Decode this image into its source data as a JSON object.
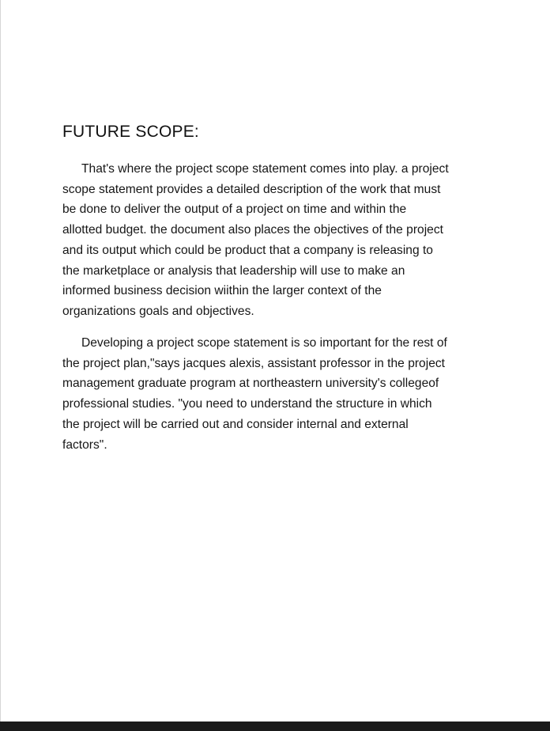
{
  "document": {
    "heading": "FUTURE SCOPE:",
    "paragraphs": [
      {
        "lines": [
          "That's where the project scope statement comes into play. a project",
          "scope statement provides a detailed description of the work that must",
          "be done to deliver the output of a project on time and within the",
          "allotted budget. the document also places the objectives of the project",
          "and its output which could be product that a company is releasing to",
          "the marketplace or analysis that leadership will use to make an",
          "informed business decision wiithin the larger context of the",
          "organizations goals and objectives."
        ]
      },
      {
        "lines": [
          "Developing a project scope statement is so important for the rest of",
          "the project plan,\"says jacques alexis, assistant professor in the project",
          "management graduate program at northeastern university's collegeof",
          "professional studies. \"you need to understand the structure in which",
          "the project will be carried out and consider internal and external",
          "factors\"."
        ]
      }
    ]
  }
}
